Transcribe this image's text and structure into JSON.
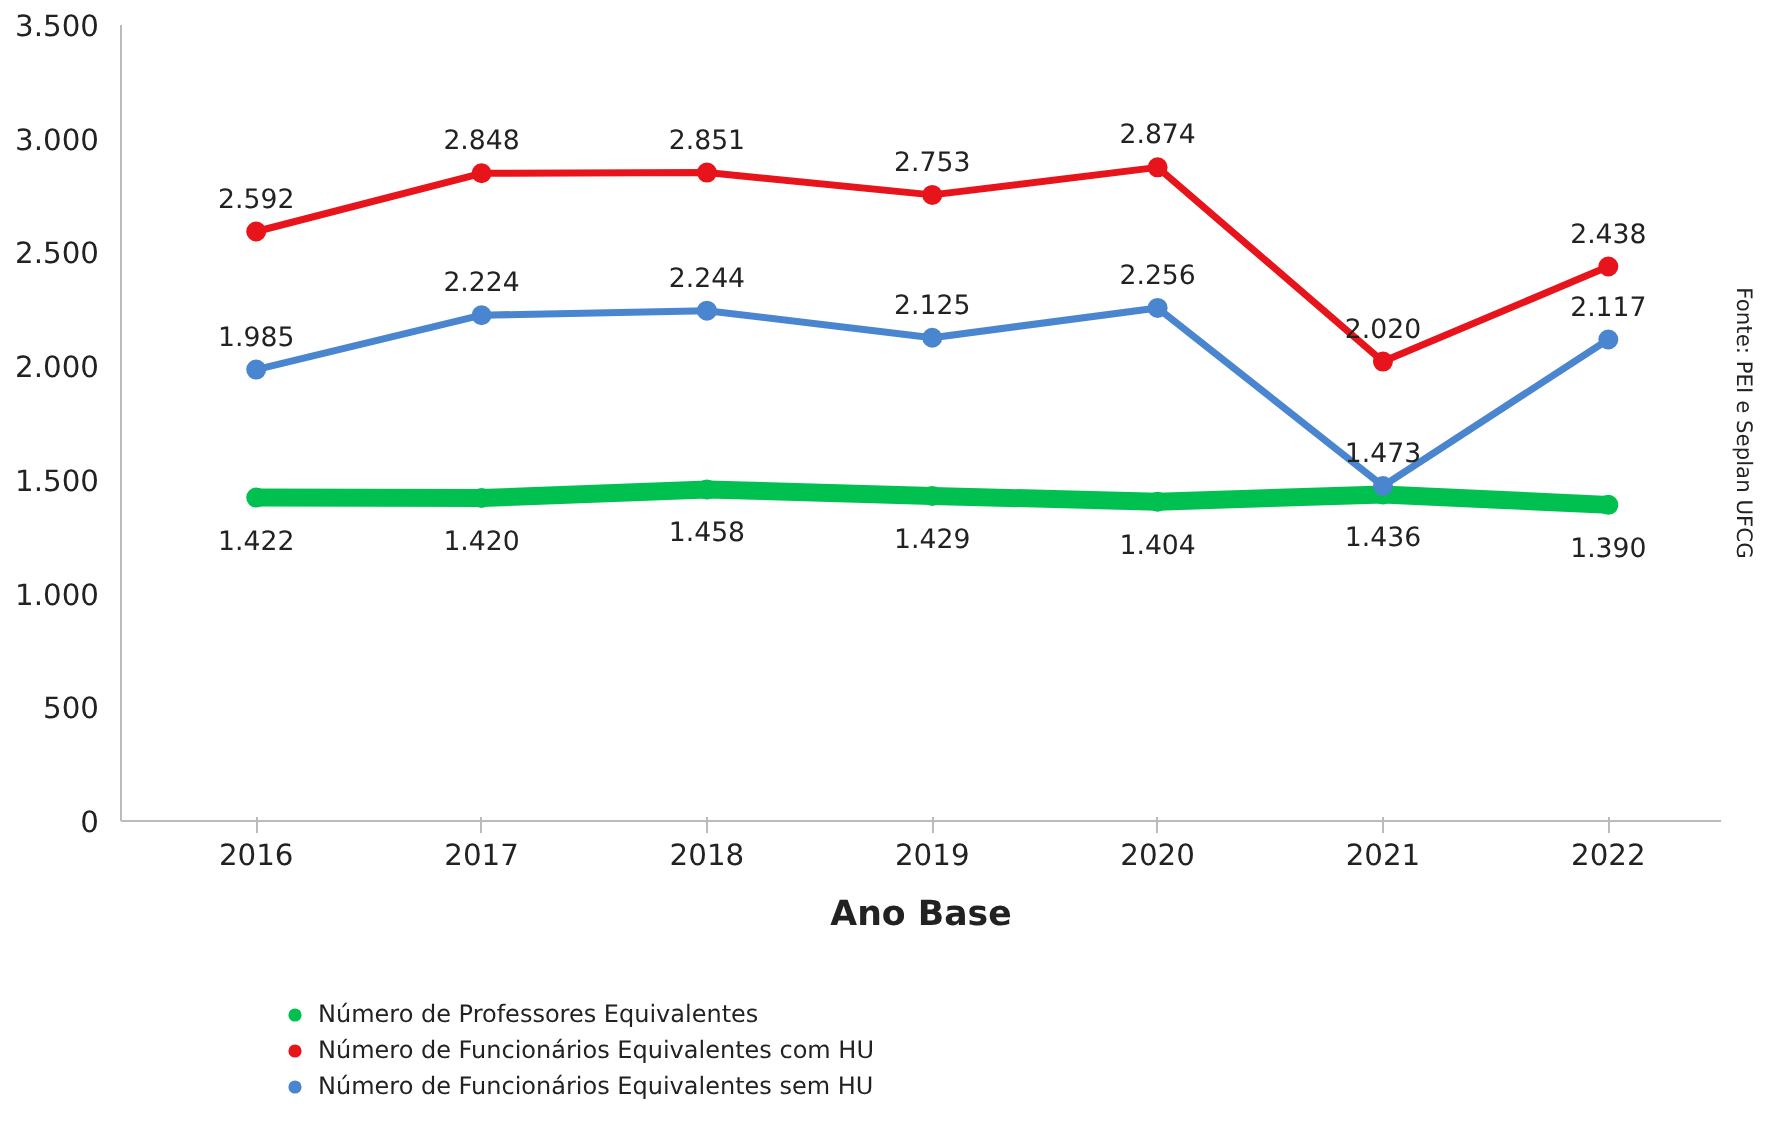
{
  "chart_data": {
    "type": "line",
    "xlabel": "Ano Base",
    "categories": [
      "2016",
      "2017",
      "2018",
      "2019",
      "2020",
      "2021",
      "2022"
    ],
    "series": [
      {
        "name": "Número de Professores Equivalentes",
        "color": "#00c050",
        "values": [
          1422,
          1420,
          1458,
          1429,
          1404,
          1436,
          1390
        ],
        "value_labels": [
          "1.422",
          "1.420",
          "1.458",
          "1.429",
          "1.404",
          "1.436",
          "1.390"
        ]
      },
      {
        "name": "Número de Funcionários Equivalentes com HU",
        "color": "#e8141c",
        "values": [
          2592,
          2848,
          2851,
          2753,
          2874,
          2020,
          2438
        ],
        "value_labels": [
          "2.592",
          "2.848",
          "2.851",
          "2.753",
          "2.874",
          "2.020",
          "2.438"
        ]
      },
      {
        "name": "Número de Funcionários Equivalentes sem HU",
        "color": "#4a86cf",
        "values": [
          1985,
          2224,
          2244,
          2125,
          2256,
          1473,
          2117
        ],
        "value_labels": [
          "1.985",
          "2.224",
          "2.244",
          "2.125",
          "2.256",
          "1.473",
          "2.117"
        ]
      }
    ],
    "ylim": [
      0,
      3500
    ],
    "yticks": [
      0,
      500,
      {
        "value": 1000,
        "label": "1.000"
      },
      {
        "value": 1500,
        "label": "1.500"
      },
      {
        "value": 2000,
        "label": "2.000"
      },
      {
        "value": 2500,
        "label": "2.500"
      },
      {
        "value": 3000,
        "label": "3.000"
      },
      {
        "value": 3500,
        "label": "3.500"
      }
    ],
    "marker": "circle",
    "legend": "bottom",
    "annotations": [
      "Fonte: PEI e Seplan UFCG"
    ]
  }
}
